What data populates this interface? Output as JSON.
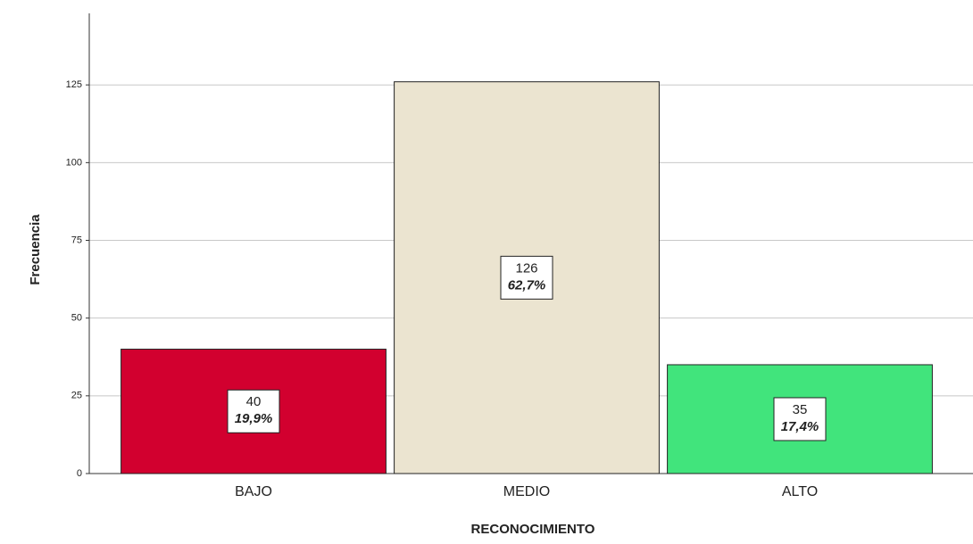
{
  "chart_data": {
    "type": "bar",
    "categories": [
      "BAJO",
      "MEDIO",
      "ALTO"
    ],
    "values": [
      40,
      126,
      35
    ],
    "percentages": [
      19.9,
      62.7,
      17.4
    ],
    "percentage_labels": [
      "19,9%",
      "62,7%",
      "17,4%"
    ],
    "colors": [
      "#d2002f",
      "#ebe4d0",
      "#41e47c"
    ],
    "xlabel": "RECONOCIMIENTO",
    "ylabel": "Frecuencia",
    "ylim": [
      0,
      148
    ],
    "yticks": [
      0,
      25,
      50,
      75,
      100,
      125
    ],
    "grid": true
  }
}
